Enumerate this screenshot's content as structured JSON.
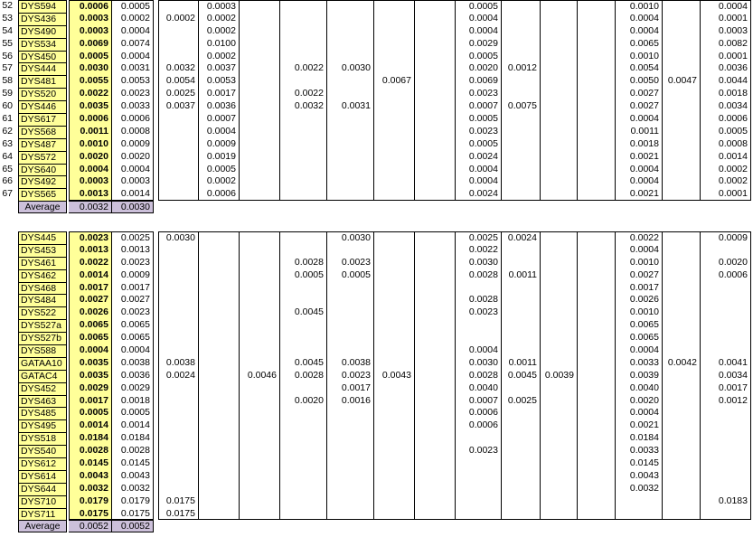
{
  "colors": {
    "marker_bg": "#FFFF99",
    "average_bg": "#CCC0DA",
    "grid_border": "#000000",
    "page_bg": "#FFFFFF"
  },
  "table1": {
    "rows": [
      {
        "num": "52",
        "marker": "DYS594",
        "values": [
          "0.0006",
          "0.0005",
          "",
          "0.0003",
          "",
          "",
          "",
          "",
          "",
          "0.0005",
          "",
          "",
          "",
          "0.0010",
          "",
          "0.0004"
        ]
      },
      {
        "num": "53",
        "marker": "DYS436",
        "values": [
          "0.0003",
          "0.0002",
          "0.0002",
          "0.0002",
          "",
          "",
          "",
          "",
          "",
          "0.0004",
          "",
          "",
          "",
          "0.0004",
          "",
          "0.0001"
        ]
      },
      {
        "num": "54",
        "marker": "DYS490",
        "values": [
          "0.0003",
          "0.0004",
          "",
          "0.0002",
          "",
          "",
          "",
          "",
          "",
          "0.0004",
          "",
          "",
          "",
          "0.0004",
          "",
          "0.0003"
        ]
      },
      {
        "num": "55",
        "marker": "DYS534",
        "values": [
          "0.0069",
          "0.0074",
          "",
          "0.0100",
          "",
          "",
          "",
          "",
          "",
          "0.0029",
          "",
          "",
          "",
          "0.0065",
          "",
          "0.0082"
        ]
      },
      {
        "num": "56",
        "marker": "DYS450",
        "values": [
          "0.0005",
          "0.0004",
          "",
          "0.0002",
          "",
          "",
          "",
          "",
          "",
          "0.0005",
          "",
          "",
          "",
          "0.0010",
          "",
          "0.0001"
        ]
      },
      {
        "num": "57",
        "marker": "DYS444",
        "values": [
          "0.0030",
          "0.0031",
          "0.0032",
          "0.0037",
          "",
          "0.0022",
          "0.0030",
          "",
          "",
          "0.0020",
          "0.0012",
          "",
          "",
          "0.0054",
          "",
          "0.0036"
        ]
      },
      {
        "num": "58",
        "marker": "DYS481",
        "values": [
          "0.0055",
          "0.0053",
          "0.0054",
          "0.0053",
          "",
          "",
          "",
          "0.0067",
          "",
          "0.0069",
          "",
          "",
          "",
          "0.0050",
          "0.0047",
          "0.0044"
        ]
      },
      {
        "num": "59",
        "marker": "DYS520",
        "values": [
          "0.0022",
          "0.0023",
          "0.0025",
          "0.0017",
          "",
          "0.0022",
          "",
          "",
          "",
          "0.0023",
          "",
          "",
          "",
          "0.0027",
          "",
          "0.0018"
        ]
      },
      {
        "num": "60",
        "marker": "DYS446",
        "values": [
          "0.0035",
          "0.0033",
          "0.0037",
          "0.0036",
          "",
          "0.0032",
          "0.0031",
          "",
          "",
          "0.0007",
          "0.0075",
          "",
          "",
          "0.0027",
          "",
          "0.0034"
        ]
      },
      {
        "num": "61",
        "marker": "DYS617",
        "values": [
          "0.0006",
          "0.0006",
          "",
          "0.0007",
          "",
          "",
          "",
          "",
          "",
          "0.0005",
          "",
          "",
          "",
          "0.0004",
          "",
          "0.0006"
        ]
      },
      {
        "num": "62",
        "marker": "DYS568",
        "values": [
          "0.0011",
          "0.0008",
          "",
          "0.0004",
          "",
          "",
          "",
          "",
          "",
          "0.0023",
          "",
          "",
          "",
          "0.0011",
          "",
          "0.0005"
        ]
      },
      {
        "num": "63",
        "marker": "DYS487",
        "values": [
          "0.0010",
          "0.0009",
          "",
          "0.0009",
          "",
          "",
          "",
          "",
          "",
          "0.0005",
          "",
          "",
          "",
          "0.0018",
          "",
          "0.0008"
        ]
      },
      {
        "num": "64",
        "marker": "DYS572",
        "values": [
          "0.0020",
          "0.0020",
          "",
          "0.0019",
          "",
          "",
          "",
          "",
          "",
          "0.0024",
          "",
          "",
          "",
          "0.0021",
          "",
          "0.0014"
        ]
      },
      {
        "num": "65",
        "marker": "DYS640",
        "values": [
          "0.0004",
          "0.0004",
          "",
          "0.0005",
          "",
          "",
          "",
          "",
          "",
          "0.0004",
          "",
          "",
          "",
          "0.0004",
          "",
          "0.0002"
        ]
      },
      {
        "num": "66",
        "marker": "DYS492",
        "values": [
          "0.0003",
          "0.0003",
          "",
          "0.0002",
          "",
          "",
          "",
          "",
          "",
          "0.0004",
          "",
          "",
          "",
          "0.0004",
          "",
          "0.0002"
        ]
      },
      {
        "num": "67",
        "marker": "DYS565",
        "values": [
          "0.0013",
          "0.0014",
          "",
          "0.0006",
          "",
          "",
          "",
          "",
          "",
          "0.0024",
          "",
          "",
          "",
          "0.0021",
          "",
          "0.0001"
        ]
      }
    ],
    "average": {
      "label": "Average",
      "values": [
        "0.0032",
        "0.0030"
      ]
    }
  },
  "table2": {
    "rows": [
      {
        "num": "",
        "marker": "DYS445",
        "values": [
          "0.0023",
          "0.0025",
          "0.0030",
          "",
          "",
          "",
          "0.0030",
          "",
          "",
          "0.0025",
          "0.0024",
          "",
          "",
          "0.0022",
          "",
          "0.0009"
        ]
      },
      {
        "num": "",
        "marker": "DYS453",
        "values": [
          "0.0013",
          "0.0013",
          "",
          "",
          "",
          "",
          "",
          "",
          "",
          "0.0022",
          "",
          "",
          "",
          "0.0004",
          "",
          ""
        ]
      },
      {
        "num": "",
        "marker": "DYS461",
        "values": [
          "0.0022",
          "0.0023",
          "",
          "",
          "",
          "0.0028",
          "0.0023",
          "",
          "",
          "0.0030",
          "",
          "",
          "",
          "0.0010",
          "",
          "0.0020"
        ]
      },
      {
        "num": "",
        "marker": "DYS462",
        "values": [
          "0.0014",
          "0.0009",
          "",
          "",
          "",
          "0.0005",
          "0.0005",
          "",
          "",
          "0.0028",
          "0.0011",
          "",
          "",
          "0.0027",
          "",
          "0.0006"
        ]
      },
      {
        "num": "",
        "marker": "DYS468",
        "values": [
          "0.0017",
          "0.0017",
          "",
          "",
          "",
          "",
          "",
          "",
          "",
          "",
          "",
          "",
          "",
          "0.0017",
          "",
          ""
        ]
      },
      {
        "num": "",
        "marker": "DYS484",
        "values": [
          "0.0027",
          "0.0027",
          "",
          "",
          "",
          "",
          "",
          "",
          "",
          "0.0028",
          "",
          "",
          "",
          "0.0026",
          "",
          ""
        ]
      },
      {
        "num": "",
        "marker": "DYS522",
        "values": [
          "0.0026",
          "0.0023",
          "",
          "",
          "",
          "0.0045",
          "",
          "",
          "",
          "0.0023",
          "",
          "",
          "",
          "0.0010",
          "",
          ""
        ]
      },
      {
        "num": "",
        "marker": "DYS527a",
        "values": [
          "0.0065",
          "0.0065",
          "",
          "",
          "",
          "",
          "",
          "",
          "",
          "",
          "",
          "",
          "",
          "0.0065",
          "",
          ""
        ]
      },
      {
        "num": "",
        "marker": "DYS527b",
        "values": [
          "0.0065",
          "0.0065",
          "",
          "",
          "",
          "",
          "",
          "",
          "",
          "",
          "",
          "",
          "",
          "0.0065",
          "",
          ""
        ]
      },
      {
        "num": "",
        "marker": "DYS588",
        "values": [
          "0.0004",
          "0.0004",
          "",
          "",
          "",
          "",
          "",
          "",
          "",
          "0.0004",
          "",
          "",
          "",
          "0.0004",
          "",
          ""
        ]
      },
      {
        "num": "",
        "marker": "GATAA10",
        "values": [
          "0.0035",
          "0.0038",
          "0.0038",
          "",
          "",
          "0.0045",
          "0.0038",
          "",
          "",
          "0.0030",
          "0.0011",
          "",
          "",
          "0.0033",
          "0.0042",
          "0.0041"
        ]
      },
      {
        "num": "",
        "marker": "GATAC4",
        "values": [
          "0.0035",
          "0.0036",
          "0.0024",
          "",
          "0.0046",
          "0.0028",
          "0.0023",
          "0.0043",
          "",
          "0.0028",
          "0.0045",
          "0.0039",
          "",
          "0.0039",
          "",
          "0.0034"
        ]
      },
      {
        "num": "",
        "marker": "DYS452",
        "values": [
          "0.0029",
          "0.0029",
          "",
          "",
          "",
          "",
          "0.0017",
          "",
          "",
          "0.0040",
          "",
          "",
          "",
          "0.0040",
          "",
          "0.0017"
        ]
      },
      {
        "num": "",
        "marker": "DYS463",
        "values": [
          "0.0017",
          "0.0018",
          "",
          "",
          "",
          "0.0020",
          "0.0016",
          "",
          "",
          "0.0007",
          "0.0025",
          "",
          "",
          "0.0020",
          "",
          "0.0012"
        ]
      },
      {
        "num": "",
        "marker": "DYS485",
        "values": [
          "0.0005",
          "0.0005",
          "",
          "",
          "",
          "",
          "",
          "",
          "",
          "0.0006",
          "",
          "",
          "",
          "0.0004",
          "",
          ""
        ]
      },
      {
        "num": "",
        "marker": "DYS495",
        "values": [
          "0.0014",
          "0.0014",
          "",
          "",
          "",
          "",
          "",
          "",
          "",
          "0.0006",
          "",
          "",
          "",
          "0.0021",
          "",
          ""
        ]
      },
      {
        "num": "",
        "marker": "DYS518",
        "values": [
          "0.0184",
          "0.0184",
          "",
          "",
          "",
          "",
          "",
          "",
          "",
          "",
          "",
          "",
          "",
          "0.0184",
          "",
          ""
        ]
      },
      {
        "num": "",
        "marker": "DYS540",
        "values": [
          "0.0028",
          "0.0028",
          "",
          "",
          "",
          "",
          "",
          "",
          "",
          "0.0023",
          "",
          "",
          "",
          "0.0033",
          "",
          ""
        ]
      },
      {
        "num": "",
        "marker": "DYS612",
        "values": [
          "0.0145",
          "0.0145",
          "",
          "",
          "",
          "",
          "",
          "",
          "",
          "",
          "",
          "",
          "",
          "0.0145",
          "",
          ""
        ]
      },
      {
        "num": "",
        "marker": "DYS614",
        "values": [
          "0.0043",
          "0.0043",
          "",
          "",
          "",
          "",
          "",
          "",
          "",
          "",
          "",
          "",
          "",
          "0.0043",
          "",
          ""
        ]
      },
      {
        "num": "",
        "marker": "DYS644",
        "values": [
          "0.0032",
          "0.0032",
          "",
          "",
          "",
          "",
          "",
          "",
          "",
          "",
          "",
          "",
          "",
          "0.0032",
          "",
          ""
        ]
      },
      {
        "num": "",
        "marker": "DYS710",
        "values": [
          "0.0179",
          "0.0179",
          "0.0175",
          "",
          "",
          "",
          "",
          "",
          "",
          "",
          "",
          "",
          "",
          "",
          "",
          "0.0183"
        ]
      },
      {
        "num": "",
        "marker": "DYS711",
        "values": [
          "0.0175",
          "0.0175",
          "0.0175",
          "",
          "",
          "",
          "",
          "",
          "",
          "",
          "",
          "",
          "",
          "",
          "",
          ""
        ]
      }
    ],
    "average": {
      "label": "Average",
      "values": [
        "0.0052",
        "0.0052"
      ]
    }
  }
}
